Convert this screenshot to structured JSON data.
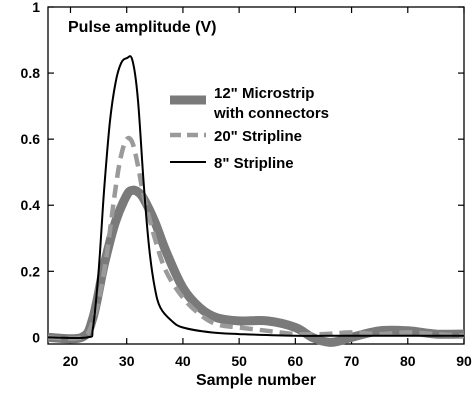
{
  "chart_data": {
    "type": "line",
    "title": "Pulse amplitude (V)",
    "xlabel": "Sample number",
    "ylabel": "",
    "xlim": [
      16,
      90
    ],
    "ylim": [
      -0.02,
      1.0
    ],
    "xticks": [
      20,
      30,
      40,
      50,
      60,
      70,
      80,
      90
    ],
    "xtick_labels": [
      "20",
      "30",
      "40",
      "50",
      "60",
      "70",
      "80",
      "90"
    ],
    "yticks": [
      0,
      0.2,
      0.4,
      0.6,
      0.8,
      1
    ],
    "ytick_labels": [
      "0",
      "0.2",
      "0.4",
      "0.6",
      "0.8",
      "1"
    ],
    "grid": false,
    "legend_position": "top-right",
    "series": [
      {
        "name": "12\" Microstrip with connectors",
        "name_lines": [
          "12\" Microstrip",
          "with connectors"
        ],
        "style": "thick-solid",
        "color": "#7a7a7a",
        "x": [
          16,
          22,
          24,
          26,
          28,
          30,
          31,
          32,
          33,
          35,
          37,
          40,
          43,
          46,
          50,
          55,
          60,
          63,
          66,
          68,
          70,
          75,
          80,
          85,
          90
        ],
        "y": [
          0.0,
          0.0,
          0.06,
          0.22,
          0.35,
          0.43,
          0.445,
          0.44,
          0.42,
          0.35,
          0.26,
          0.15,
          0.09,
          0.06,
          0.05,
          0.05,
          0.03,
          0.0,
          -0.015,
          -0.01,
          0.0,
          0.02,
          0.02,
          0.01,
          0.01
        ]
      },
      {
        "name": "20\" Stripline",
        "name_lines": [
          "20\" Stripline"
        ],
        "style": "dashed",
        "color": "#9a9a9a",
        "x": [
          16,
          22,
          24,
          26,
          28,
          29,
          30,
          31,
          32,
          33,
          35,
          37,
          40,
          43,
          46,
          50,
          55,
          60,
          65,
          70,
          75,
          80,
          85,
          90
        ],
        "y": [
          0.0,
          0.0,
          0.05,
          0.2,
          0.45,
          0.55,
          0.6,
          0.59,
          0.52,
          0.43,
          0.3,
          0.2,
          0.12,
          0.07,
          0.04,
          0.03,
          0.02,
          0.01,
          0.01,
          0.015,
          0.01,
          0.015,
          0.01,
          0.005
        ]
      },
      {
        "name": "8\" Stripline",
        "name_lines": [
          "8\" Stripline"
        ],
        "style": "thin-solid",
        "color": "#000000",
        "x": [
          16,
          23,
          24,
          25,
          26,
          27,
          28,
          29,
          30,
          31,
          32,
          33,
          34,
          35,
          36,
          38,
          40,
          45,
          50,
          60,
          70,
          80,
          90
        ],
        "y": [
          0.0,
          0.0,
          0.03,
          0.2,
          0.45,
          0.65,
          0.77,
          0.83,
          0.845,
          0.84,
          0.72,
          0.47,
          0.27,
          0.15,
          0.09,
          0.05,
          0.03,
          0.015,
          0.01,
          0.005,
          0.005,
          0.005,
          0.005
        ]
      }
    ]
  }
}
